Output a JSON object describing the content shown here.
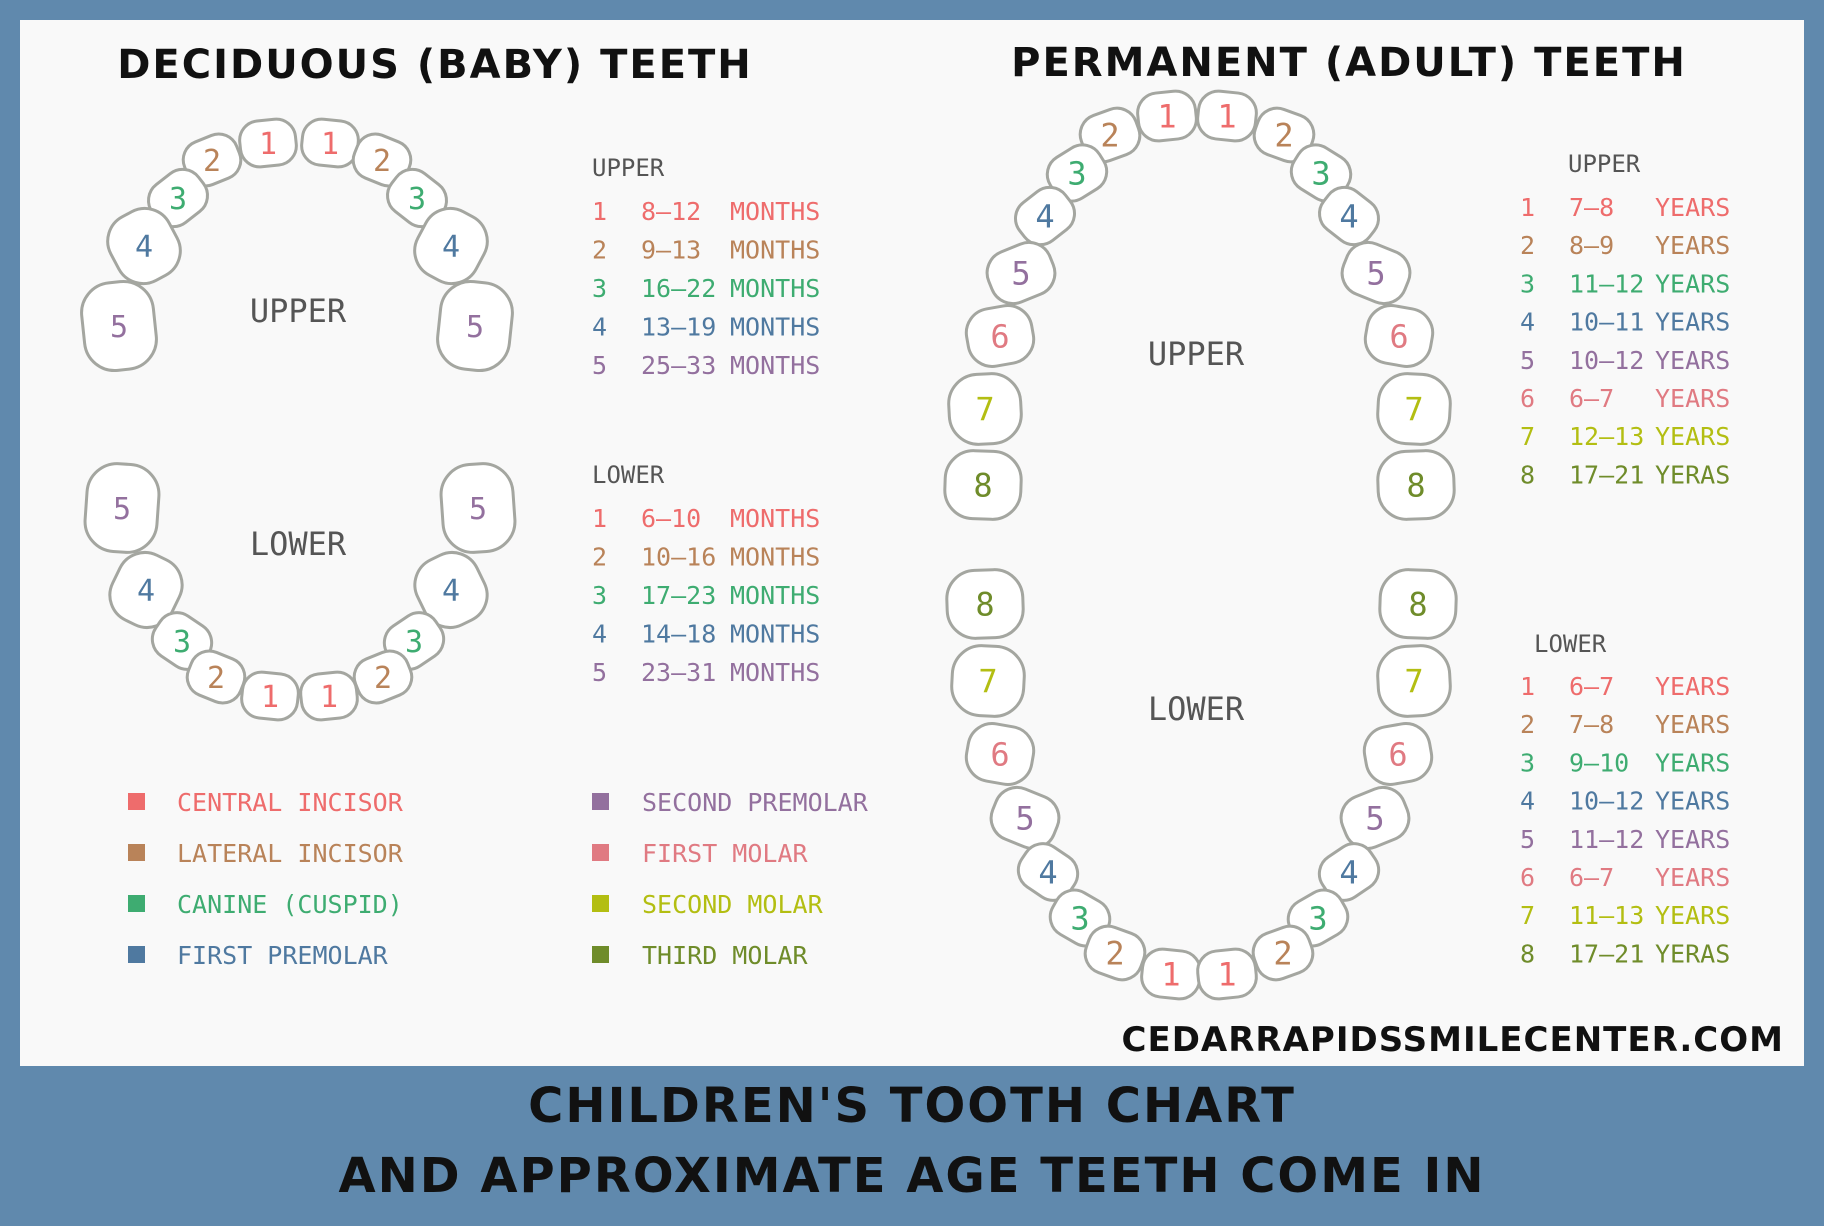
{
  "colors": {
    "1": "#ee6c6c",
    "2": "#b98359",
    "3": "#3eac71",
    "4": "#4f79a0",
    "5": "#93709e",
    "6": "#e07a82",
    "7": "#b3be12",
    "8": "#6f8c2a",
    "outline": "#a4a6a0",
    "arch_label": "#555555",
    "background": "#6089ad"
  },
  "deciduous": {
    "title": "DECIDUOUS (BABY) TEETH",
    "upper_label": "UPPER",
    "lower_label": "LOWER",
    "upper_table": {
      "heading": "UPPER",
      "rows": [
        {
          "n": "1",
          "age": "8–12",
          "unit": "MONTHS"
        },
        {
          "n": "2",
          "age": "9–13",
          "unit": "MONTHS"
        },
        {
          "n": "3",
          "age": "16–22",
          "unit": "MONTHS"
        },
        {
          "n": "4",
          "age": "13–19",
          "unit": "MONTHS"
        },
        {
          "n": "5",
          "age": "25–33",
          "unit": "MONTHS"
        }
      ]
    },
    "lower_table": {
      "heading": "LOWER",
      "rows": [
        {
          "n": "1",
          "age": "6–10",
          "unit": "MONTHS"
        },
        {
          "n": "2",
          "age": "10–16",
          "unit": "MONTHS"
        },
        {
          "n": "3",
          "age": "17–23",
          "unit": "MONTHS"
        },
        {
          "n": "4",
          "age": "14–18",
          "unit": "MONTHS"
        },
        {
          "n": "5",
          "age": "23–31",
          "unit": "MONTHS"
        }
      ]
    }
  },
  "permanent": {
    "title": "PERMANENT  (ADULT) TEETH",
    "upper_label": "UPPER",
    "lower_label": "LOWER",
    "upper_table": {
      "heading": "UPPER",
      "rows": [
        {
          "n": "1",
          "age": "7–8",
          "unit": "YEARS"
        },
        {
          "n": "2",
          "age": "8–9",
          "unit": "YEARS"
        },
        {
          "n": "3",
          "age": "11–12",
          "unit": "YEARS"
        },
        {
          "n": "4",
          "age": "10–11",
          "unit": "YEARS"
        },
        {
          "n": "5",
          "age": "10–12",
          "unit": "YEARS"
        },
        {
          "n": "6",
          "age": "6–7",
          "unit": "YEARS"
        },
        {
          "n": "7",
          "age": "12–13",
          "unit": "YEARS"
        },
        {
          "n": "8",
          "age": "17–21",
          "unit": "YERAS"
        }
      ]
    },
    "lower_table": {
      "heading": "LOWER",
      "rows": [
        {
          "n": "1",
          "age": "6–7",
          "unit": "YEARS"
        },
        {
          "n": "2",
          "age": "7–8",
          "unit": "YEARS"
        },
        {
          "n": "3",
          "age": "9–10",
          "unit": "YEARS"
        },
        {
          "n": "4",
          "age": "10–12",
          "unit": "YEARS"
        },
        {
          "n": "5",
          "age": "11–12",
          "unit": "YEARS"
        },
        {
          "n": "6",
          "age": "6–7",
          "unit": "YEARS"
        },
        {
          "n": "7",
          "age": "11–13",
          "unit": "YEARS"
        },
        {
          "n": "8",
          "age": "17–21",
          "unit": "YERAS"
        }
      ]
    }
  },
  "legend": [
    {
      "n": "1",
      "label": "CENTRAL INCISOR"
    },
    {
      "n": "2",
      "label": "LATERAL INCISOR"
    },
    {
      "n": "3",
      "label": "CANINE (CUSPID)"
    },
    {
      "n": "4",
      "label": "FIRST PREMOLAR"
    },
    {
      "n": "5",
      "label": "SECOND PREMOLAR"
    },
    {
      "n": "6",
      "label": "FIRST MOLAR"
    },
    {
      "n": "7",
      "label": "SECOND MOLAR"
    },
    {
      "n": "8",
      "label": "THIRD MOLAR"
    }
  ],
  "website": "CEDARRAPIDSSMILECENTER.COM",
  "footer": {
    "line1": "CHILDREN'S TOOTH CHART",
    "line2": "AND APPROXIMATE AGE TEETH COME IN"
  }
}
